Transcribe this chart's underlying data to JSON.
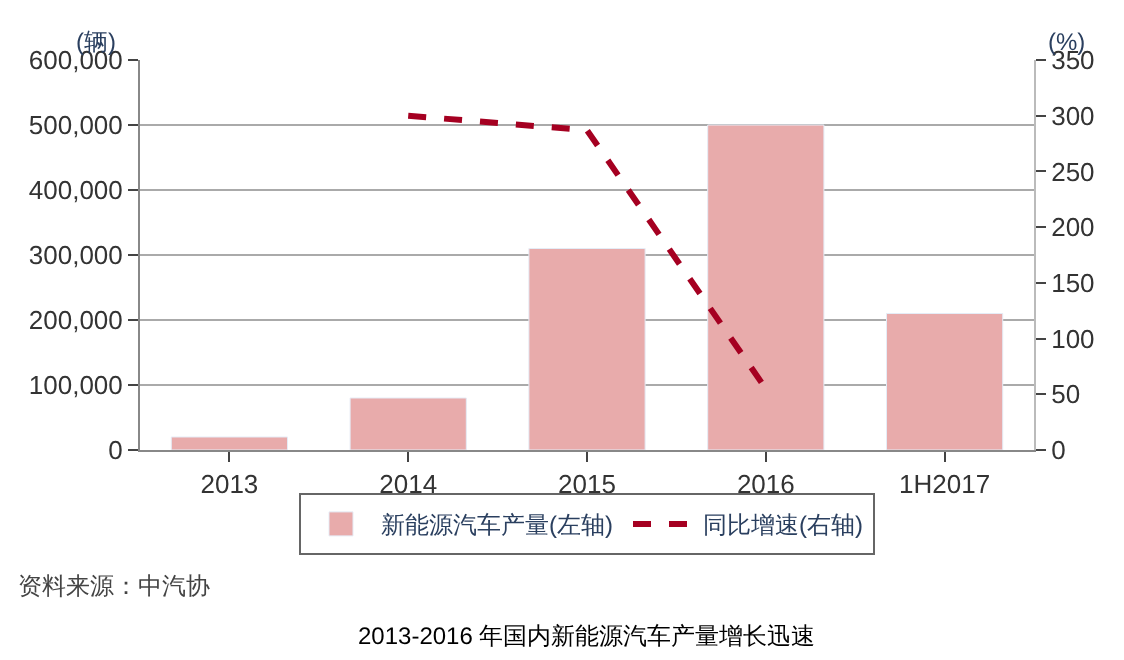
{
  "chart_data": {
    "type": "bar",
    "title": "2013-2016 年国内新能源汽车产量增长迅速",
    "ylabel": "(辆)",
    "y2label": "(%)",
    "categories": [
      "2013",
      "2014",
      "2015",
      "2016",
      "1H2017"
    ],
    "series": [
      {
        "name": "新能源汽车产量(左轴)",
        "color": "#e8abab",
        "values": [
          20000,
          80000,
          310000,
          500000,
          210000
        ]
      },
      {
        "name": "同比增速(右轴)",
        "type": "line",
        "axis": "y2",
        "color": "#a50021",
        "line_style": "dashed",
        "marker": "none",
        "values": [
          null,
          300,
          287,
          55,
          null
        ]
      }
    ],
    "ylim": [
      0,
      600000
    ],
    "yticks": [
      {
        "value": 0,
        "label": "0"
      },
      {
        "value": 100000,
        "label": "100,000"
      },
      {
        "value": 200000,
        "label": "200,000"
      },
      {
        "value": 300000,
        "label": "300,000"
      },
      {
        "value": 400000,
        "label": "400,000"
      },
      {
        "value": 500000,
        "label": "500,000"
      },
      {
        "value": 600000,
        "label": "600,000"
      }
    ],
    "y2lim": [
      0,
      350
    ],
    "y2ticks": [
      0,
      50,
      100,
      150,
      200,
      250,
      300,
      350
    ],
    "grid": "y",
    "legend": "bottom",
    "annotations": [
      "资料来源：中汽协"
    ]
  }
}
